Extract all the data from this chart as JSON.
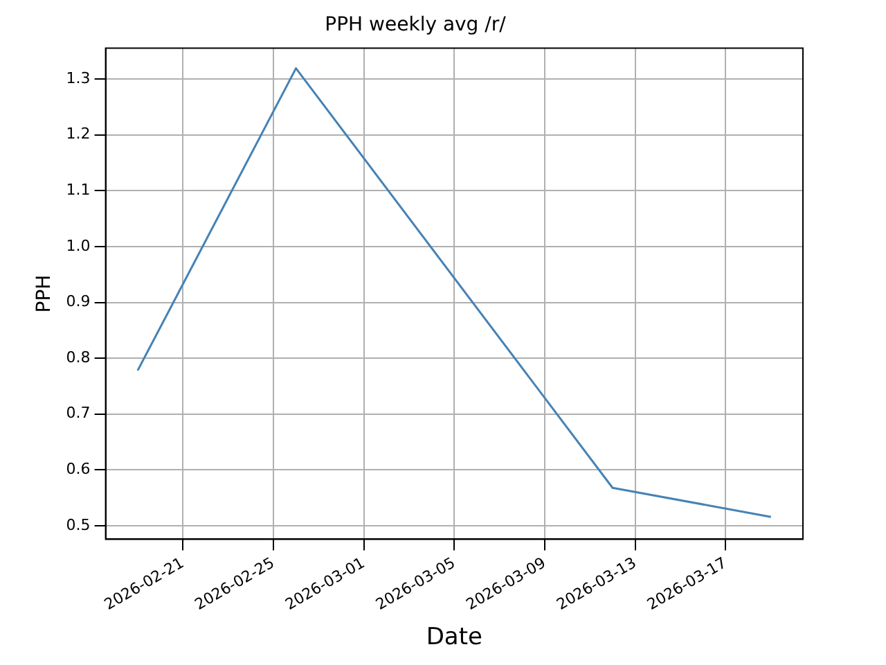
{
  "chart_data": {
    "type": "line",
    "title": "PPH weekly avg /r/",
    "xlabel": "Date",
    "ylabel": "PPH",
    "x": [
      "2026-02-19",
      "2026-02-26",
      "2026-03-12",
      "2026-03-19"
    ],
    "series": [
      {
        "color": "#4682b4",
        "values": [
          0.778,
          1.319,
          0.568,
          0.516
        ]
      }
    ],
    "xlim": [
      "2026-02-17T14:00",
      "2026-03-20T10:00"
    ],
    "xticks": [
      "2026-02-21",
      "2026-02-25",
      "2026-03-01",
      "2026-03-05",
      "2026-03-09",
      "2026-03-13",
      "2026-03-17"
    ],
    "ylim": [
      0.476,
      1.355
    ],
    "yticks": [
      0.5,
      0.6,
      0.7,
      0.8,
      0.9,
      {
        "value": 1,
        "label": "1.0"
      },
      1.1,
      1.2,
      1.3
    ],
    "grid": true,
    "legend": false,
    "marker": "none",
    "line_style": "solid"
  }
}
